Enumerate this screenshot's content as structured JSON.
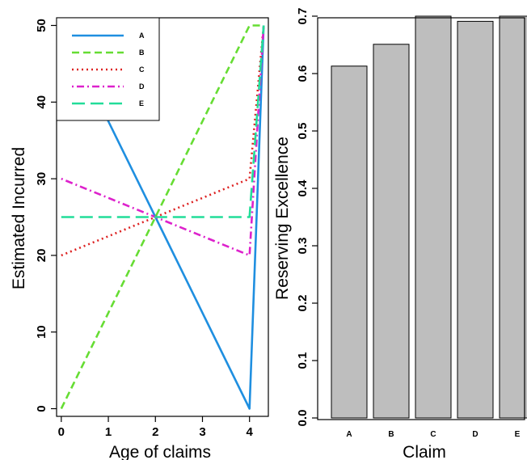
{
  "chart_data": [
    {
      "type": "line",
      "xlabel": "Age of claims",
      "ylabel": "Estimated Incurred",
      "xlim": [
        -0.1,
        4.4
      ],
      "ylim": [
        -1,
        51
      ],
      "xticks": [
        "0",
        "1",
        "2",
        "3",
        "4"
      ],
      "yticks": [
        "0",
        "10",
        "20",
        "30",
        "40",
        "50"
      ],
      "legend_position": "top-left",
      "grid": false,
      "series": [
        {
          "name": "A",
          "color": "#1f8fe0",
          "dash": "solid",
          "points": [
            [
              0,
              50
            ],
            [
              2,
              25
            ],
            [
              4,
              0
            ],
            [
              4.3,
              50
            ]
          ]
        },
        {
          "name": "B",
          "color": "#66dd33",
          "dash": "dashed",
          "points": [
            [
              0,
              0
            ],
            [
              2,
              25
            ],
            [
              4,
              50
            ],
            [
              4.3,
              50
            ]
          ]
        },
        {
          "name": "C",
          "color": "#dd2222",
          "dash": "dotted",
          "points": [
            [
              0,
              20
            ],
            [
              2,
              25
            ],
            [
              4,
              30
            ],
            [
              4.3,
              50
            ]
          ]
        },
        {
          "name": "D",
          "color": "#dd22cc",
          "dash": "dotdash",
          "points": [
            [
              0,
              30
            ],
            [
              2,
              25
            ],
            [
              4,
              20
            ],
            [
              4.3,
              50
            ]
          ]
        },
        {
          "name": "E",
          "color": "#22dd99",
          "dash": "longdash",
          "points": [
            [
              0,
              25
            ],
            [
              2,
              25
            ],
            [
              4,
              25
            ],
            [
              4.3,
              50
            ]
          ]
        }
      ]
    },
    {
      "type": "bar",
      "xlabel": "Claim",
      "ylabel": "Reserving Excellence",
      "categories": [
        "A",
        "B",
        "C",
        "D",
        "E"
      ],
      "values": [
        0.613,
        0.651,
        0.7,
        0.691,
        0.7
      ],
      "ylim": [
        0,
        0.7
      ],
      "yticks": [
        "0.0",
        "0.1",
        "0.2",
        "0.3",
        "0.4",
        "0.5",
        "0.6",
        "0.7"
      ],
      "bar_color": "#bebebe"
    }
  ]
}
